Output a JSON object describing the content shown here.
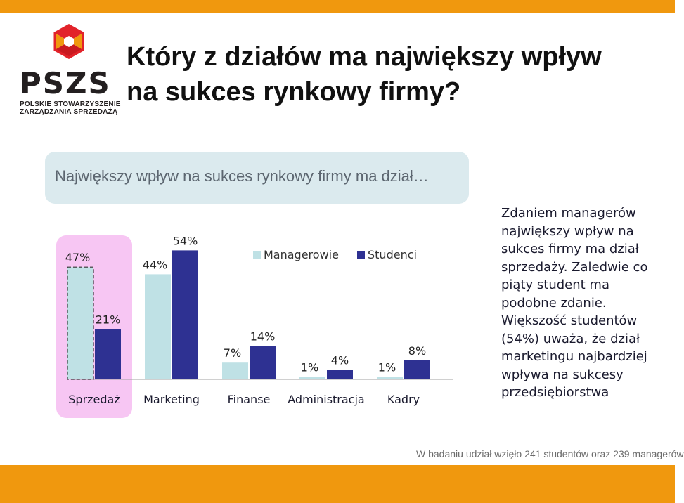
{
  "title": {
    "line1": "Który z działów ma największy wpływ",
    "line2": "na sukces rynkowy firmy?"
  },
  "subtitle": "Największy wpływ na sukces rynkowy firmy ma dział…",
  "logo": {
    "text": "PSZS",
    "sub1": "POLSKIE STOWARZYSZENIE",
    "sub2": "ZARZĄDZANIA SPRZEDAŻĄ"
  },
  "commentary": {
    "p1": "Zdaniem managerów największy wpływ na sukces firmy ma dział sprzedaży. Zaledwie co piąty student ma podobne zdanie.",
    "p2": "Większość studentów (54%) uważa, że dział marketingu najbardziej wpływa na sukcesy przedsiębiorstwa"
  },
  "footnote": "W badaniu udział wzięło 241 studentów oraz 239 managerów",
  "colors": {
    "managers": "#bfe1e5",
    "students": "#2e3192",
    "highlight": "#f7c6f3",
    "accent": "#f0980e"
  },
  "chart_data": {
    "type": "bar",
    "categories": [
      "Sprzedaż",
      "Marketing",
      "Finanse",
      "Administracja",
      "Kadry"
    ],
    "series": [
      {
        "name": "Managerowie",
        "values": [
          47,
          44,
          7,
          1,
          1
        ],
        "labels": [
          "47%",
          "44%",
          "7%",
          "1%",
          "1%"
        ]
      },
      {
        "name": "Studenci",
        "values": [
          21,
          54,
          14,
          4,
          8
        ],
        "labels": [
          "21%",
          "54%",
          "14%",
          "4%",
          "8%"
        ]
      }
    ],
    "ylim": [
      0,
      60
    ],
    "legend": "top-right",
    "highlight_category": "Sprzedaż"
  }
}
